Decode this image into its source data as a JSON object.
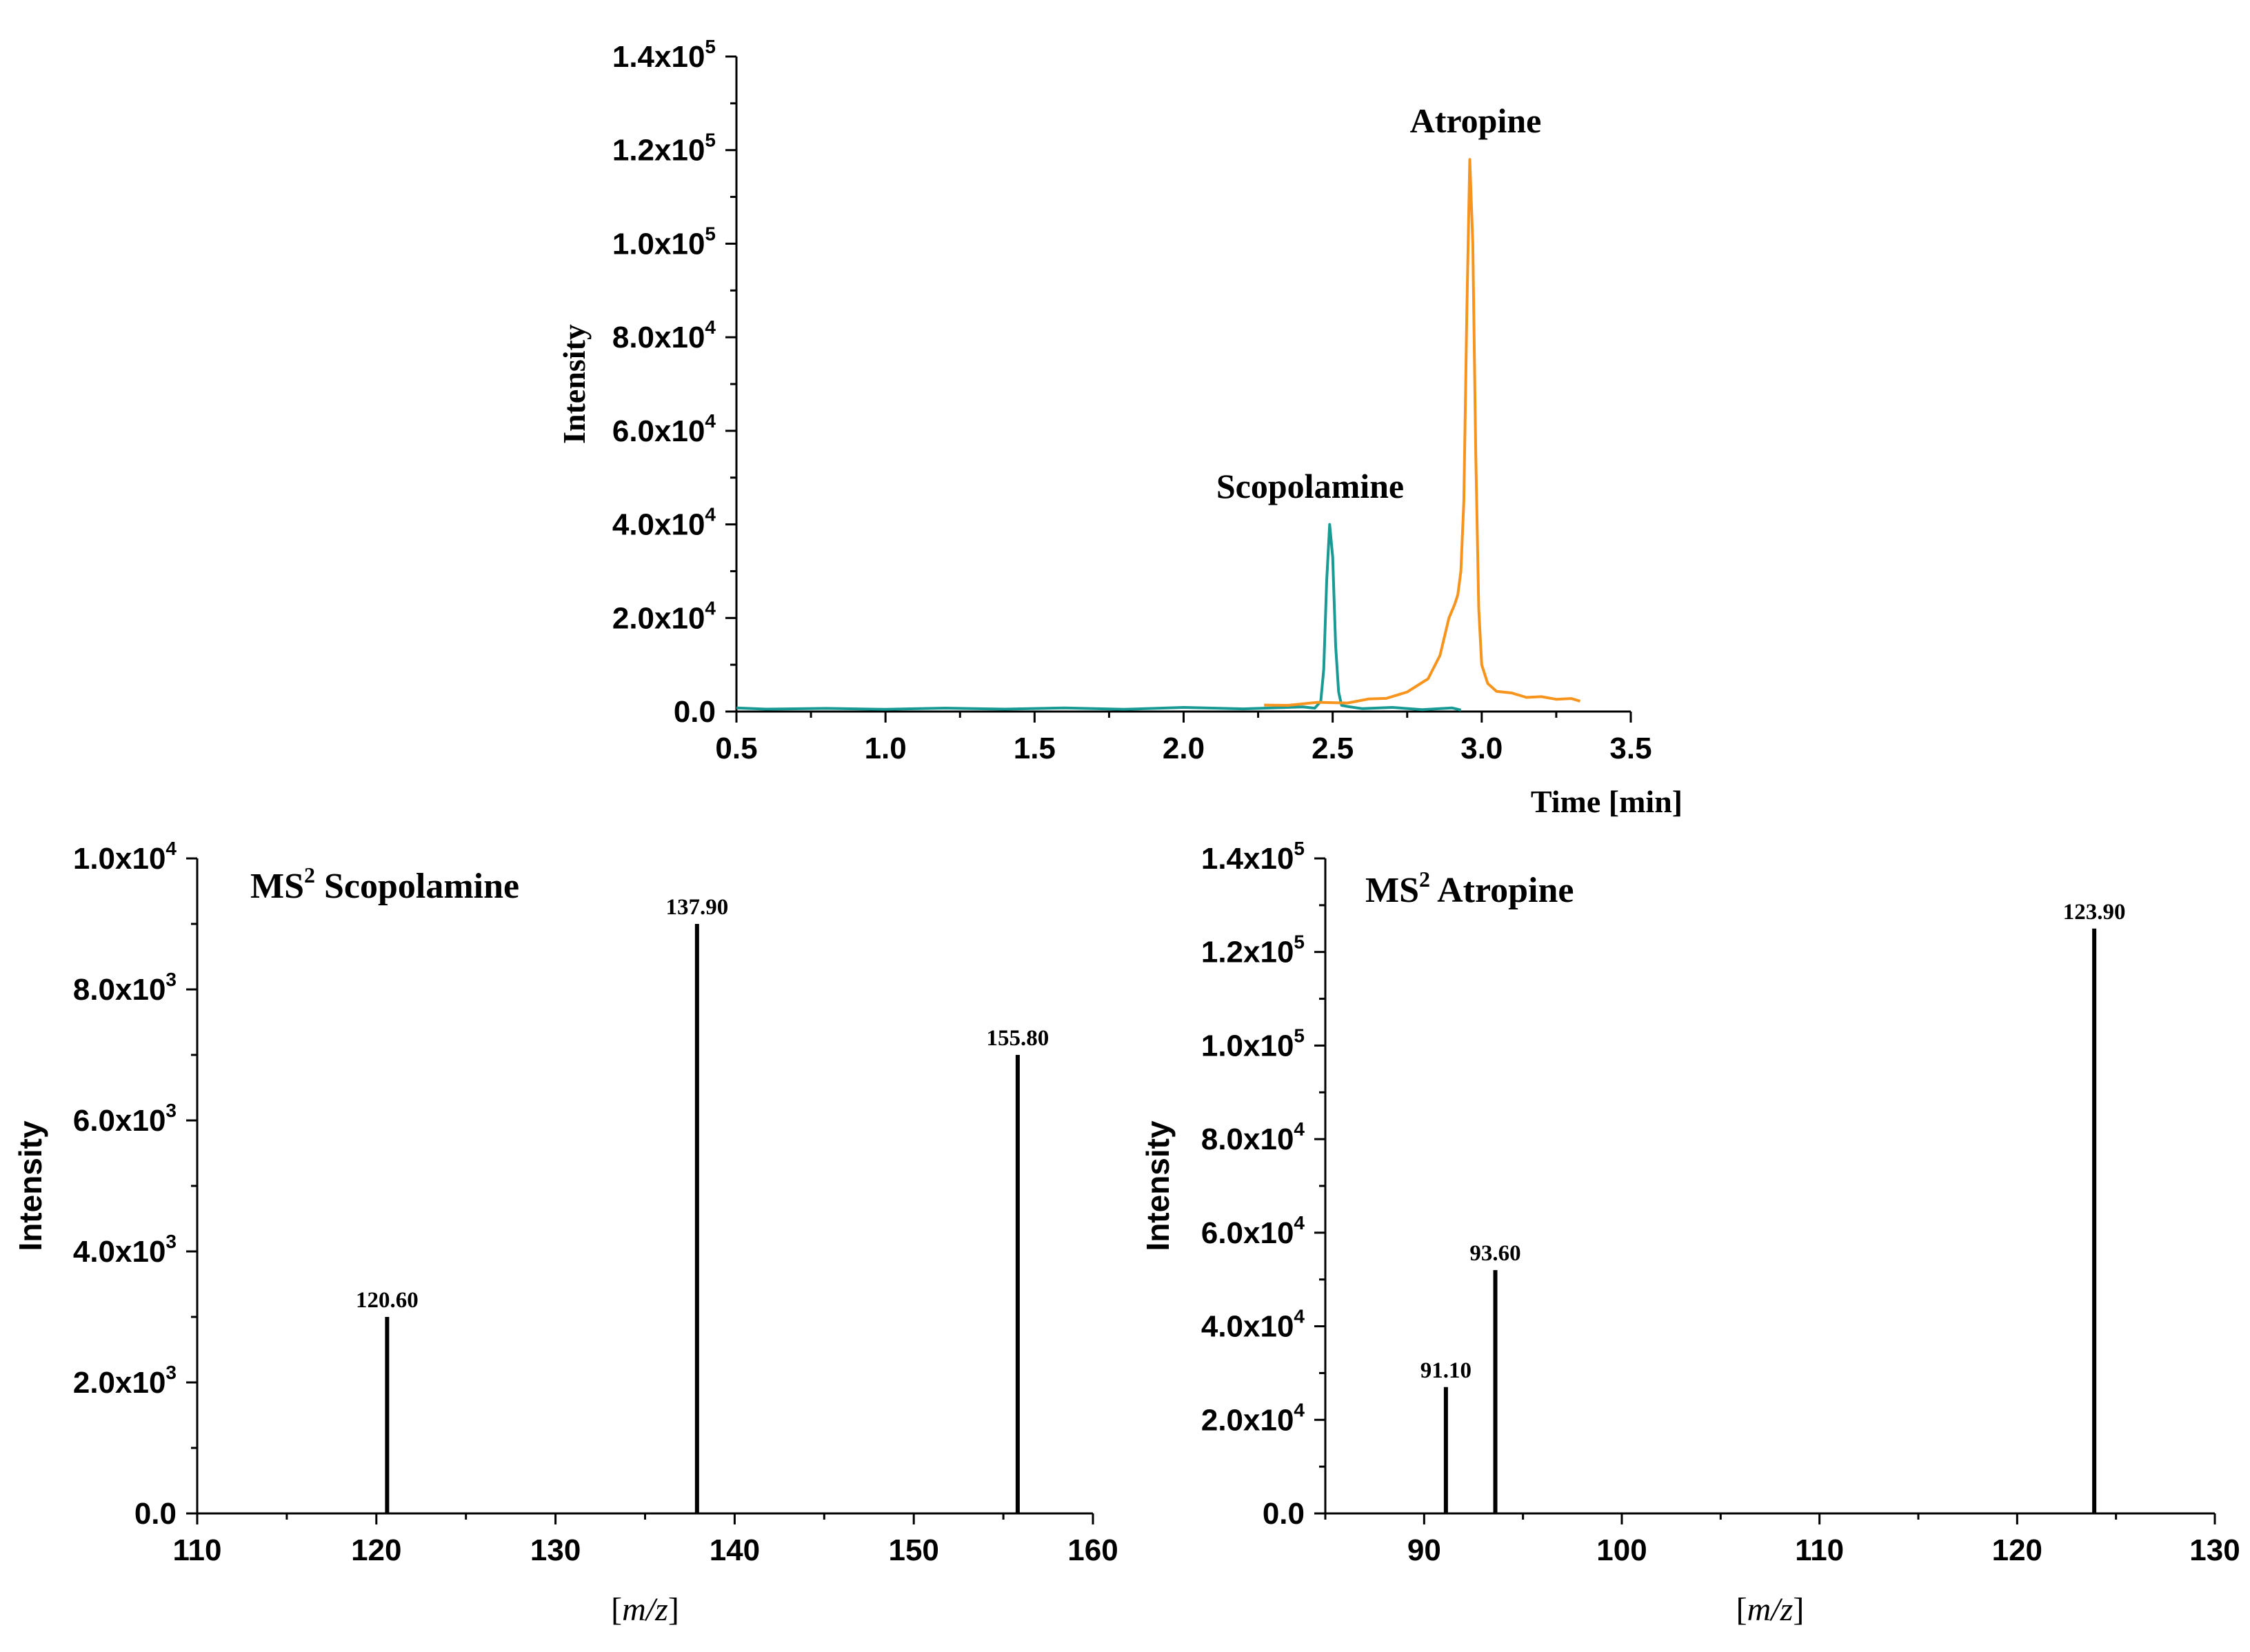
{
  "chart_data": [
    {
      "id": "chromatogram",
      "type": "line",
      "title": "",
      "xlabel": "Time [min]",
      "ylabel": "Intensity",
      "xlim": [
        0.5,
        3.5
      ],
      "ylim": [
        0,
        140000
      ],
      "x_ticks": [
        0.5,
        1.0,
        1.5,
        2.0,
        2.5,
        3.0,
        3.5
      ],
      "x_tick_labels": [
        "0.5",
        "1.0",
        "1.5",
        "2.0",
        "2.5",
        "3.0",
        "3.5"
      ],
      "y_ticks": [
        0,
        20000,
        40000,
        60000,
        80000,
        100000,
        120000,
        140000
      ],
      "y_tick_labels": [
        {
          "mant": "0.0",
          "exp": ""
        },
        {
          "mant": "2.0x10",
          "exp": "4"
        },
        {
          "mant": "4.0x10",
          "exp": "4"
        },
        {
          "mant": "6.0x10",
          "exp": "4"
        },
        {
          "mant": "8.0x10",
          "exp": "4"
        },
        {
          "mant": "1.0x10",
          "exp": "5"
        },
        {
          "mant": "1.2x10",
          "exp": "5"
        },
        {
          "mant": "1.4x10",
          "exp": "5"
        }
      ],
      "grid": false,
      "series": [
        {
          "name": "Scopolamine",
          "color": "#1a9a94",
          "x": [
            0.5,
            0.6,
            0.8,
            1.0,
            1.2,
            1.4,
            1.6,
            1.8,
            2.0,
            2.2,
            2.4,
            2.44,
            2.46,
            2.47,
            2.48,
            2.49,
            2.5,
            2.51,
            2.52,
            2.53,
            2.55,
            2.6,
            2.7,
            2.8,
            2.9,
            2.93
          ],
          "y": [
            600,
            700,
            500,
            650,
            550,
            700,
            600,
            650,
            700,
            750,
            800,
            900,
            2000,
            9000,
            28000,
            40000,
            33000,
            14000,
            4000,
            1500,
            900,
            800,
            700,
            600,
            600,
            500
          ]
        },
        {
          "name": "Atropine",
          "color": "#f7941d",
          "x": [
            2.27,
            2.35,
            2.45,
            2.55,
            2.62,
            2.68,
            2.75,
            2.82,
            2.86,
            2.89,
            2.91,
            2.92,
            2.93,
            2.94,
            2.95,
            2.96,
            2.97,
            2.98,
            2.99,
            3.0,
            3.02,
            3.05,
            3.1,
            3.15,
            3.2,
            3.25,
            3.3,
            3.33
          ],
          "y": [
            1200,
            1500,
            1800,
            2000,
            2500,
            3000,
            4000,
            7000,
            12000,
            20000,
            23000,
            25000,
            30000,
            45000,
            85000,
            118000,
            100000,
            55000,
            22000,
            10000,
            6000,
            4500,
            3800,
            3200,
            3000,
            2800,
            2600,
            2400
          ]
        }
      ],
      "annotations": [
        {
          "text": "Atropine",
          "series": "Atropine"
        },
        {
          "text": "Scopolamine",
          "series": "Scopolamine"
        }
      ]
    },
    {
      "id": "ms2-scopolamine",
      "type": "bar",
      "title_main": "MS",
      "title_sup": "2",
      "title_rest": " Scopolamine",
      "xlabel_open": "[",
      "xlabel_italic": "m/z",
      "xlabel_close": "]",
      "ylabel": "Intensity",
      "xlim": [
        110,
        160
      ],
      "ylim": [
        0,
        10000
      ],
      "x_ticks": [
        110,
        120,
        130,
        140,
        150,
        160
      ],
      "x_tick_labels": [
        "110",
        "120",
        "130",
        "140",
        "150",
        "160"
      ],
      "y_ticks": [
        0,
        2000,
        4000,
        6000,
        8000,
        10000
      ],
      "y_tick_labels": [
        {
          "mant": "0.0",
          "exp": ""
        },
        {
          "mant": "2.0x10",
          "exp": "3"
        },
        {
          "mant": "4.0x10",
          "exp": "3"
        },
        {
          "mant": "6.0x10",
          "exp": "3"
        },
        {
          "mant": "8.0x10",
          "exp": "3"
        },
        {
          "mant": "1.0x10",
          "exp": "4"
        }
      ],
      "grid": false,
      "peaks": [
        {
          "x": 120.6,
          "y": 3000,
          "label": "120.60"
        },
        {
          "x": 137.9,
          "y": 9000,
          "label": "137.90"
        },
        {
          "x": 155.8,
          "y": 7000,
          "label": "155.80"
        }
      ]
    },
    {
      "id": "ms2-atropine",
      "type": "bar",
      "title_main": "MS",
      "title_sup": "2",
      "title_rest": " Atropine",
      "xlabel_open": "[",
      "xlabel_italic": "m/z",
      "xlabel_close": "]",
      "ylabel": "Intensity",
      "xlim": [
        85,
        130
      ],
      "ylim": [
        0,
        140000
      ],
      "x_ticks": [
        90,
        100,
        110,
        120,
        130
      ],
      "x_tick_labels": [
        "90",
        "100",
        "110",
        "120",
        "130"
      ],
      "y_ticks": [
        0,
        20000,
        40000,
        60000,
        80000,
        100000,
        120000,
        140000
      ],
      "y_tick_labels": [
        {
          "mant": "0.0",
          "exp": ""
        },
        {
          "mant": "2.0x10",
          "exp": "4"
        },
        {
          "mant": "4.0x10",
          "exp": "4"
        },
        {
          "mant": "6.0x10",
          "exp": "4"
        },
        {
          "mant": "8.0x10",
          "exp": "4"
        },
        {
          "mant": "1.0x10",
          "exp": "5"
        },
        {
          "mant": "1.2x10",
          "exp": "5"
        },
        {
          "mant": "1.4x10",
          "exp": "5"
        }
      ],
      "grid": false,
      "peaks": [
        {
          "x": 91.1,
          "y": 27000,
          "label": "91.10"
        },
        {
          "x": 93.6,
          "y": 52000,
          "label": "93.60"
        },
        {
          "x": 123.9,
          "y": 125000,
          "label": "123.90"
        }
      ]
    }
  ]
}
